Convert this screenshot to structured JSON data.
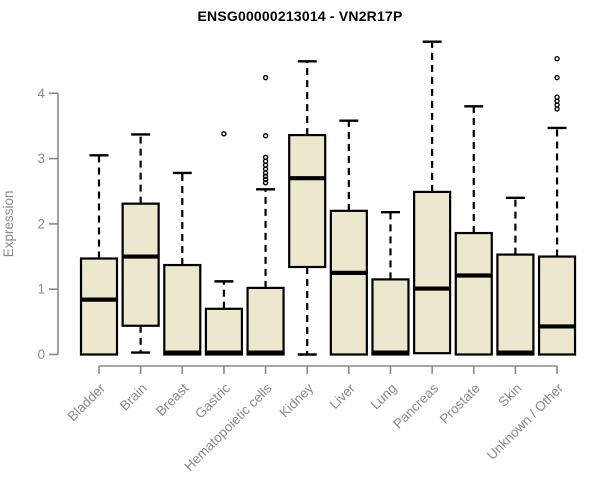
{
  "colors": {
    "box_fill": "#ECE7CD",
    "box_stroke": "#000000",
    "median_stroke": "#000000",
    "whisker_stroke": "#000000",
    "outlier_stroke": "#000000",
    "axis": "#8a8a8a",
    "axis_text": "#8a8a8a",
    "title_text": "#000000",
    "background": "#ffffff"
  },
  "chart_data": {
    "type": "boxplot",
    "title": "ENSG00000213014 - VN2R17P",
    "xlabel": "",
    "ylabel": "Expression",
    "ylim": [
      0,
      4.9
    ],
    "yticks": [
      0,
      1,
      2,
      3,
      4
    ],
    "grid": false,
    "legend": "none",
    "categories": [
      "Bladder",
      "Brain",
      "Breast",
      "Gastric",
      "Hematopoietic cells",
      "Kidney",
      "Liver",
      "Lung",
      "Pancreas",
      "Prostate",
      "Skin",
      "Unknown / Other"
    ],
    "series": [
      {
        "name": "Bladder",
        "whisker_low": 0,
        "q1": 0,
        "median": 0.84,
        "q3": 1.47,
        "whisker_high": 3.05,
        "outliers": []
      },
      {
        "name": "Brain",
        "whisker_low": 0.03,
        "q1": 0.44,
        "median": 1.5,
        "q3": 2.31,
        "whisker_high": 3.37,
        "outliers": []
      },
      {
        "name": "Breast",
        "whisker_low": 0,
        "q1": 0,
        "median": 0.03,
        "q3": 1.37,
        "whisker_high": 2.78,
        "outliers": []
      },
      {
        "name": "Gastric",
        "whisker_low": 0,
        "q1": 0,
        "median": 0.03,
        "q3": 0.7,
        "whisker_high": 1.12,
        "outliers": [
          3.38
        ]
      },
      {
        "name": "Hematopoietic cells",
        "whisker_low": 0,
        "q1": 0,
        "median": 0.03,
        "q3": 1.02,
        "whisker_high": 2.53,
        "outliers": [
          2.63,
          2.68,
          2.73,
          2.78,
          2.84,
          2.9,
          2.96,
          3.02,
          3.35,
          4.24
        ]
      },
      {
        "name": "Kidney",
        "whisker_low": 0,
        "q1": 1.34,
        "median": 2.7,
        "q3": 3.36,
        "whisker_high": 4.49,
        "outliers": []
      },
      {
        "name": "Liver",
        "whisker_low": 0,
        "q1": 0,
        "median": 1.25,
        "q3": 2.2,
        "whisker_high": 3.58,
        "outliers": []
      },
      {
        "name": "Lung",
        "whisker_low": 0,
        "q1": 0,
        "median": 0.03,
        "q3": 1.15,
        "whisker_high": 2.18,
        "outliers": []
      },
      {
        "name": "Pancreas",
        "whisker_low": 0.02,
        "q1": 0.02,
        "median": 1.01,
        "q3": 2.49,
        "whisker_high": 4.79,
        "outliers": []
      },
      {
        "name": "Prostate",
        "whisker_low": 0,
        "q1": 0,
        "median": 1.21,
        "q3": 1.86,
        "whisker_high": 3.8,
        "outliers": []
      },
      {
        "name": "Skin",
        "whisker_low": 0,
        "q1": 0,
        "median": 0.03,
        "q3": 1.53,
        "whisker_high": 2.4,
        "outliers": []
      },
      {
        "name": "Unknown / Other",
        "whisker_low": 0,
        "q1": 0,
        "median": 0.43,
        "q3": 1.5,
        "whisker_high": 3.47,
        "outliers": [
          3.76,
          3.82,
          3.88,
          3.94,
          4.24,
          4.53
        ]
      }
    ]
  }
}
